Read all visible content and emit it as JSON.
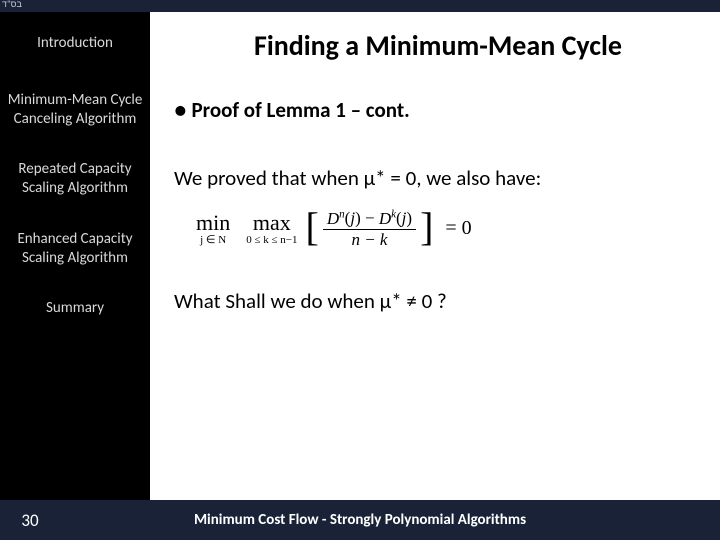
{
  "colors": {
    "sidebar_bg": "#000000",
    "footer_bg": "#1a2238",
    "text_main": "#000000",
    "text_sidebar": "#d9d9d9",
    "text_footer": "#ffffff",
    "content_bg": "#ffffff"
  },
  "topstrip": {
    "text": "בס\"ד"
  },
  "sidebar": {
    "items": [
      {
        "label": "Introduction"
      },
      {
        "label": "Minimum-Mean Cycle Canceling Algorithm"
      },
      {
        "label": "Repeated Capacity Scaling Algorithm"
      },
      {
        "label": "Enhanced Capacity Scaling Algorithm"
      },
      {
        "label": "Summary"
      }
    ]
  },
  "content": {
    "title": "Finding a Minimum-Mean Cycle",
    "bullet_prefix": "●",
    "bullet_text": "Proof of Lemma 1 – cont.",
    "line1": "We proved that  when µ* = 0, we also have:",
    "formula": {
      "op1": "min",
      "op1_sub": "j ∈ N",
      "op2": "max",
      "op2_sub": "0 ≤ k ≤ n−1",
      "numerator": "Dⁿ(j) − Dᵏ(j)",
      "denominator": "n − k",
      "rhs": "= 0"
    },
    "question": "What Shall we do when µ* ≠ 0 ?"
  },
  "footer": {
    "page": "30",
    "title": "Minimum Cost Flow - Strongly Polynomial Algorithms"
  }
}
